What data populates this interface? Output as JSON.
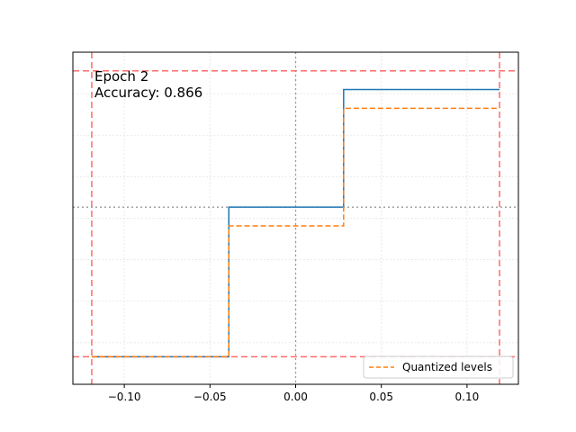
{
  "chart_data": {
    "type": "line",
    "title": "",
    "xlabel": "",
    "ylabel": "",
    "xlim": [
      -0.13,
      0.13
    ],
    "ylim": [
      -0.103,
      1.14
    ],
    "x_ticks": [
      -0.1,
      -0.05,
      0.0,
      0.05,
      0.1
    ],
    "x_tick_labels": [
      "−0.10",
      "−0.05",
      "0.00",
      "0.05",
      "0.10"
    ],
    "y_ticks": [],
    "grid": true,
    "legend_position": "lower right",
    "annotations": [
      "Epoch 2",
      "Accuracy: 0.866"
    ],
    "series": [
      {
        "color": "#1f77b4",
        "style": "solid",
        "step": "post",
        "x": [
          -0.119,
          -0.039,
          0.028,
          0.119
        ],
        "y": [
          0.0,
          0.56,
          1.0,
          1.0
        ]
      },
      {
        "name": "Quantized levels",
        "color": "#ff7f0e",
        "style": "dashed",
        "step": "post",
        "x": [
          -0.119,
          -0.039,
          0.028,
          0.119
        ],
        "y": [
          0.0,
          0.49,
          0.93,
          0.93
        ]
      }
    ],
    "reference_lines": [
      {
        "orientation": "vertical",
        "value": -0.119,
        "color": "#ff6b6b",
        "style": "dashed"
      },
      {
        "orientation": "vertical",
        "value": 0.119,
        "color": "#ff6b6b",
        "style": "dashed"
      },
      {
        "orientation": "horizontal",
        "value": 0.0,
        "color": "#ff6b6b",
        "style": "dashed"
      },
      {
        "orientation": "horizontal",
        "value": 1.07,
        "color": "#ff6b6b",
        "style": "dashed"
      },
      {
        "orientation": "vertical",
        "value": 0.0,
        "color": "#999999",
        "style": "dotted"
      },
      {
        "orientation": "horizontal",
        "value": 0.56,
        "color": "#999999",
        "style": "dotted"
      }
    ]
  }
}
